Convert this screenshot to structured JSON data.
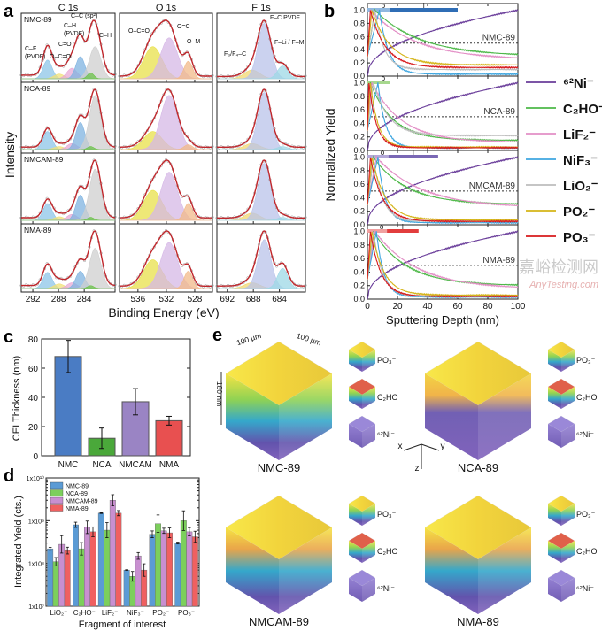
{
  "panel_labels": [
    "a",
    "b",
    "c",
    "d",
    "e"
  ],
  "chart_data": [
    {
      "panel": "a",
      "type": "line",
      "xlabel": "Binding Energy (eV)",
      "ylabel": "Intensity",
      "samples": [
        "NMC-89",
        "NCA-89",
        "NMCAM-89",
        "NMA-89"
      ],
      "regions": [
        {
          "title": "C 1s",
          "xlim": [
            293.8,
            279.2
          ],
          "ticks": [
            292,
            288,
            284
          ],
          "components": [
            {
              "label": "C–F (PVDF)",
              "center": 289.7,
              "width": 0.7,
              "color": "#8ec5e8",
              "heights": [
                0.32,
                0.3,
                0.28,
                0.28
              ]
            },
            {
              "label": "O–C=O",
              "center": 287.9,
              "width": 0.8,
              "color": "#f0e27a",
              "heights": [
                0.08,
                0.05,
                0.06,
                0.08
              ]
            },
            {
              "label": "C=O",
              "center": 285.9,
              "width": 0.8,
              "color": "#e7a9d6",
              "heights": [
                0.18,
                0.1,
                0.1,
                0.1
              ]
            },
            {
              "label": "C–H (PVDF)",
              "center": 284.6,
              "width": 0.7,
              "color": "#7fb3e0",
              "heights": [
                0.38,
                0.45,
                0.42,
                0.3
              ]
            },
            {
              "label": "C–C (sp²)",
              "center": 282.3,
              "width": 0.9,
              "color": "#cfcfcf",
              "heights": [
                0.55,
                0.9,
                0.85,
                0.7
              ]
            },
            {
              "label": "C–H",
              "center": 283.0,
              "width": 0.5,
              "color": "#6cc24a",
              "heights": [
                0.1,
                0.05,
                0.05,
                0.05
              ]
            }
          ]
        },
        {
          "title": "O 1s",
          "xlim": [
            538.6,
            525.5
          ],
          "ticks": [
            536,
            532,
            528
          ],
          "components": [
            {
              "label": "O–C=O",
              "center": 533.9,
              "width": 1.3,
              "color": "#e8e04a",
              "heights": [
                0.55,
                0.3,
                0.5,
                0.5
              ]
            },
            {
              "label": "O=C",
              "center": 531.6,
              "width": 1.2,
              "color": "#d6b8e6",
              "heights": [
                0.7,
                0.9,
                0.8,
                0.8
              ]
            },
            {
              "label": "O–M",
              "center": 528.9,
              "width": 0.6,
              "color": "#f2b98a",
              "heights": [
                0.3,
                0.08,
                0.28,
                0.3
              ]
            }
          ]
        },
        {
          "title": "F 1s",
          "xlim": [
            693.6,
            680.0
          ],
          "ticks": [
            692,
            688,
            684
          ],
          "components": [
            {
              "label": "F₃/F₄–C",
              "center": 688.2,
              "width": 1.2,
              "color": "#f1d870",
              "heights": [
                0.15,
                0.1,
                0.12,
                0.1
              ]
            },
            {
              "label": "F–C PVDF",
              "center": 686.3,
              "width": 1.0,
              "color": "#b9c3ea",
              "heights": [
                0.95,
                0.95,
                0.95,
                0.85
              ]
            },
            {
              "label": "F–Li / F–M",
              "center": 683.5,
              "width": 0.8,
              "color": "#9ed8e6",
              "heights": [
                0.22,
                0.05,
                0.05,
                0.35
              ]
            }
          ]
        }
      ]
    },
    {
      "panel": "b",
      "type": "line",
      "xlabel": "Sputtering Depth (nm)",
      "ylabel": "Normalized Yield",
      "xlim": [
        0,
        100
      ],
      "ylim": [
        0,
        1.1
      ],
      "xticks": [
        0,
        20,
        40,
        60,
        80,
        100
      ],
      "yticks": [
        "0.0",
        "0.2",
        "0.4",
        "0.6",
        "0.8",
        "1.0"
      ],
      "threshold": 0.5,
      "legend_position": "right",
      "series": [
        {
          "name": "⁶²Ni⁻",
          "color": "#6a3d9a"
        },
        {
          "name": "C₂HO⁻",
          "color": "#4db848"
        },
        {
          "name": "LiF₂⁻",
          "color": "#e38fc6"
        },
        {
          "name": "NiF₃⁻",
          "color": "#3ea6e0"
        },
        {
          "name": "LiO₂⁻",
          "color": "#bdbdbd"
        },
        {
          "name": "PO₂⁻",
          "color": "#d4b417"
        },
        {
          "name": "PO₃⁻",
          "color": "#d7191c"
        }
      ],
      "samples": [
        {
          "name": "NMC-89",
          "bar_color": "#2f6db5",
          "bar_light": "#8fb8e0",
          "outer_end": 15,
          "inner_end": 60,
          "marks": [
            "o",
            "i"
          ]
        },
        {
          "name": "NCA-89",
          "bar_color": "#7cc35a",
          "bar_light": "#a7d88e",
          "outer_end": 15,
          "inner_end": 15,
          "marks": [
            "o"
          ]
        },
        {
          "name": "NMCAM-89",
          "bar_color": "#7a68b5",
          "bar_light": "#b3a8d8",
          "outer_end": 14,
          "inner_end": 47,
          "marks": [
            "o",
            "i"
          ]
        },
        {
          "name": "NMA-89",
          "bar_color": "#e23d3d",
          "bar_light": "#f0a0a0",
          "outer_end": 13,
          "inner_end": 34,
          "marks": [
            "o",
            "i"
          ]
        }
      ]
    },
    {
      "panel": "c",
      "type": "bar",
      "ylabel": "CEI Thickness (nm)",
      "ylim": [
        0,
        80
      ],
      "yticks": [
        0,
        20,
        40,
        60,
        80
      ],
      "categories": [
        "NMC",
        "NCA",
        "NMCAM",
        "NMA"
      ],
      "values": [
        68,
        12,
        37,
        24
      ],
      "errors": [
        11,
        7,
        9,
        3
      ],
      "colors": [
        "#4a7cc4",
        "#4aa83a",
        "#9a84c4",
        "#e85050"
      ]
    },
    {
      "panel": "d",
      "type": "bar",
      "ylabel": "Integrated Yield (cts.)",
      "xlabel": "Fragment of interest",
      "yscale": "log",
      "ylim": [
        10000000.0,
        10000000000.0
      ],
      "yticks": [
        "1x10⁷",
        "1x10⁸",
        "1x10⁹",
        "1x10¹⁰"
      ],
      "legend_position": "top-left",
      "categories": [
        "LiO₂⁻",
        "C₂HO⁻",
        "LiF₂⁻",
        "NiF₃⁻",
        "PO₂⁻",
        "PO₃⁻"
      ],
      "series": [
        {
          "name": "NMC-89",
          "color": "#5b9bd5",
          "values": [
            220000000.0,
            800000000.0,
            1500000000.0,
            70000000.0,
            480000000.0,
            300000000.0
          ],
          "err_factor": [
            1.08,
            1.15,
            1.02,
            1.02,
            1.2,
            1.05
          ]
        },
        {
          "name": "NCA-89",
          "color": "#7ccf5c",
          "values": [
            110000000.0,
            220000000.0,
            600000000.0,
            50000000.0,
            850000000.0,
            1000000000.0
          ],
          "err_factor": [
            1.25,
            1.4,
            1.5,
            1.3,
            1.6,
            1.7
          ]
        },
        {
          "name": "NMCAM-89",
          "color": "#c88fd0",
          "values": [
            280000000.0,
            700000000.0,
            3000000000.0,
            150000000.0,
            580000000.0,
            550000000.0
          ],
          "err_factor": [
            1.6,
            1.4,
            1.35,
            1.2,
            1.15,
            1.25
          ]
        },
        {
          "name": "NMA-89",
          "color": "#f06060",
          "values": [
            200000000.0,
            550000000.0,
            1500000000.0,
            70000000.0,
            520000000.0,
            420000000.0
          ],
          "err_factor": [
            1.2,
            1.3,
            1.15,
            1.4,
            1.3,
            1.35
          ]
        }
      ]
    }
  ],
  "panel_e": {
    "dimensions": {
      "x": "100 µm",
      "y": "100 µm",
      "z": "180 nm"
    },
    "axes": {
      "x": "x",
      "y": "y",
      "z": "z"
    },
    "samples": [
      "NMC-89",
      "NCA-89",
      "NMCAM-89",
      "NMA-89"
    ],
    "fragments": [
      "PO₃⁻",
      "C₂HO⁻",
      "⁶²Ni⁻"
    ]
  },
  "watermark": {
    "cn": "嘉峪检测网",
    "en": "AnyTesting.com"
  }
}
